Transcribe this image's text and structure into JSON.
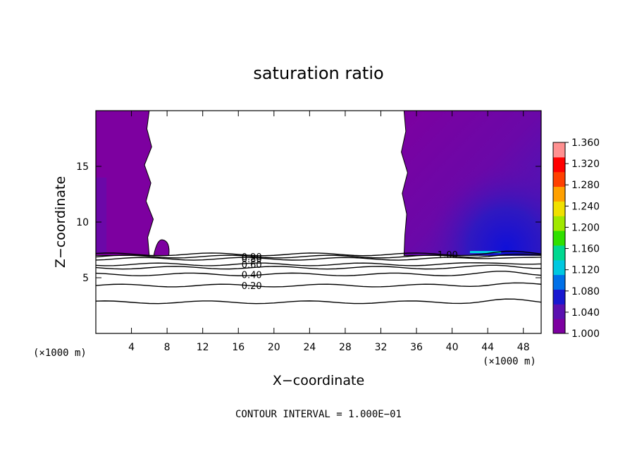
{
  "chart_data": {
    "type": "contour",
    "title": "saturation ratio",
    "xlabel": "X−coordinate",
    "ylabel": "Z−coordinate",
    "x_unit_left": "(×1000 m)",
    "x_unit_right": "(×1000 m)",
    "xlim": [
      0,
      50
    ],
    "ylim": [
      0,
      20
    ],
    "xticks": [
      "4",
      "8",
      "12",
      "16",
      "20",
      "24",
      "28",
      "32",
      "36",
      "40",
      "44",
      "48"
    ],
    "yticks": [
      "5",
      "10",
      "15"
    ],
    "footer": "CONTOUR INTERVAL = 1.000E−01",
    "colorbar": {
      "min": 1.0,
      "max": 1.36,
      "labels": [
        "1.360",
        "1.320",
        "1.280",
        "1.240",
        "1.200",
        "1.160",
        "1.120",
        "1.080",
        "1.040",
        "1.000"
      ],
      "colors": [
        "#7d00a0",
        "#5a10b0",
        "#1818d0",
        "#0070e8",
        "#00c8e0",
        "#00d890",
        "#30e000",
        "#a0e800",
        "#f0e000",
        "#ffa000",
        "#ff4000",
        "#ff0000",
        "#ff9090"
      ]
    },
    "contour_lines": [
      {
        "level": 0.2,
        "label": "0.20",
        "z_at_label": 4.3,
        "label_x": 17.5
      },
      {
        "level": 0.3,
        "z_at_label": 2.8
      },
      {
        "level": 0.4,
        "label": "0.40",
        "z_at_label": 5.3,
        "label_x": 17.5
      },
      {
        "level": 0.5,
        "z_at_label": 5.9
      },
      {
        "level": 0.6,
        "label": "0.60",
        "z_at_label": 6.2,
        "label_x": 17.5
      },
      {
        "level": 0.8,
        "label": "0.80",
        "z_at_label": 6.7,
        "label_x": 17.5
      },
      {
        "level": 0.9,
        "label": "0.90",
        "z_at_label": 6.9,
        "label_x": 17.5
      },
      {
        "level": 1.0,
        "label": "1.00",
        "z_at_label": 7.1,
        "label_x": 39.5
      }
    ],
    "supersaturated_regions": [
      {
        "name": "left",
        "x_range": [
          0,
          6.0
        ],
        "z_range": [
          7.0,
          20
        ],
        "min_value": 1.0,
        "max_value": 1.03
      },
      {
        "name": "bubble",
        "x_range": [
          6.5,
          8.2
        ],
        "z_range": [
          7.0,
          8.4
        ],
        "min_value": 1.0,
        "max_value": 1.01
      },
      {
        "name": "right",
        "x_range": [
          34.6,
          50
        ],
        "z_range": [
          7.0,
          20
        ],
        "min_value": 1.0,
        "max_value": 1.12
      }
    ]
  }
}
